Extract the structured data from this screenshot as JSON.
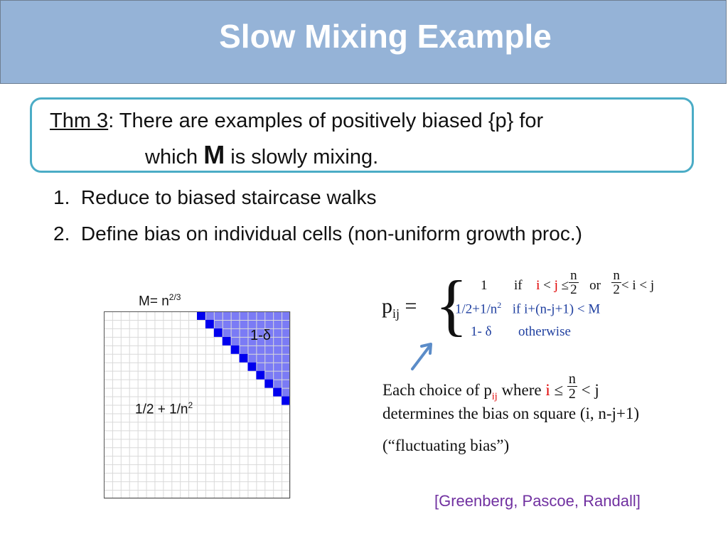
{
  "slide": {
    "title": "Slow Mixing Example",
    "theorem": {
      "label": "Thm 3",
      "text_line1": ":  There are examples of positively biased {p} for",
      "text_line2_prefix": "which ",
      "text_line2_bold": "M",
      "text_line2_suffix": " is slowly mixing."
    },
    "list": [
      {
        "num": "1.",
        "text": "Reduce to biased staircase walks"
      },
      {
        "num": "2.",
        "text": "Define bias on individual cells  (non-uniform growth proc.)"
      }
    ],
    "figure": {
      "m_label_base": "M= n",
      "m_label_exp": "2/3",
      "delta_label": "1-δ",
      "half_label_base": "1/2 + 1/n",
      "half_label_exp": "2",
      "grid_size": 22,
      "staircase_cells": 11,
      "colors": {
        "staircase": "#0000ee",
        "region": "#7b7bf5",
        "grid": "#d9d9d9"
      }
    },
    "formula": {
      "lhs_p": "p",
      "lhs_sub": "ij",
      "lhs_eq": " =",
      "case1": {
        "value": "1",
        "if": "if",
        "i": "i",
        "lt": "<",
        "j": "j",
        "le": "≤",
        "n": "n",
        "two": "2",
        "or": "or",
        "rest": "< i < j"
      },
      "case2": {
        "value": "1/2+1/n",
        "exp": "2",
        "cond": "if   i+(n-j+1) < M"
      },
      "case3": {
        "value": "1- δ",
        "cond": "otherwise"
      }
    },
    "description": {
      "line1_a": "Each choice of p",
      "line1_sub": "ij",
      "line1_b": " where ",
      "line1_i": "i",
      "line1_le": " ≤ ",
      "line1_n": "n",
      "line1_two": "2",
      "line1_rest": " < j",
      "line2": "determines the bias on square (i, n-j+1)",
      "line3": "(“fluctuating bias”)"
    },
    "citation": "[Greenberg, Pascoe, Randall]"
  }
}
